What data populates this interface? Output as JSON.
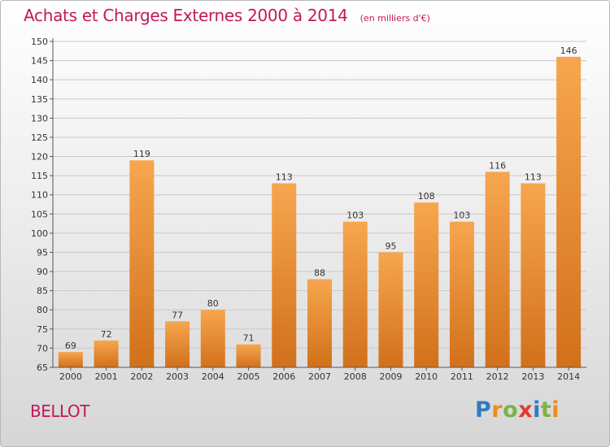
{
  "title": "Achats et Charges Externes 2000 à 2014",
  "subtitle": "(en milliers d'€)",
  "commune": "BELLOT",
  "logo": "Proxiti",
  "colors": {
    "title": "#c2185b",
    "bar_top": "#f7a64f",
    "bar_bottom": "#d2701b"
  },
  "chart_data": {
    "type": "bar",
    "title": "Achats et Charges Externes 2000 à 2014",
    "subtitle": "(en milliers d'€)",
    "categories": [
      "2000",
      "2001",
      "2002",
      "2003",
      "2004",
      "2005",
      "2006",
      "2007",
      "2008",
      "2009",
      "2010",
      "2011",
      "2012",
      "2013",
      "2014"
    ],
    "values": [
      69,
      72,
      119,
      77,
      80,
      71,
      113,
      88,
      103,
      95,
      108,
      103,
      116,
      113,
      146
    ],
    "ylim": [
      65,
      150
    ],
    "yticks": [
      65,
      70,
      75,
      80,
      85,
      90,
      95,
      100,
      105,
      110,
      115,
      120,
      125,
      130,
      135,
      140,
      145,
      150
    ],
    "xlabel": "",
    "ylabel": "",
    "grid": true
  }
}
